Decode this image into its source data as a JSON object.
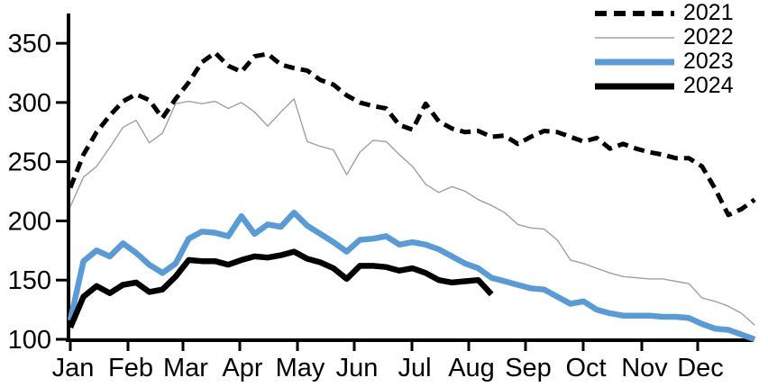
{
  "chart": {
    "title": "",
    "legend": [
      {
        "label": "2021",
        "style": "dashed",
        "color": "#000000"
      },
      {
        "label": "2022",
        "style": "thin",
        "color": "#A0A0A0"
      },
      {
        "label": "2023",
        "style": "thick",
        "color": "#5B9BD5"
      },
      {
        "label": "2024",
        "style": "thick",
        "color": "#000000"
      }
    ]
  },
  "chart_data": {
    "type": "line",
    "title": "",
    "xlabel": "",
    "ylabel": "",
    "x_frequency": "weekly",
    "categories": [
      "Jan",
      "Feb",
      "Mar",
      "Apr",
      "May",
      "Jun",
      "Jul",
      "Aug",
      "Sep",
      "Oct",
      "Nov",
      "Dec"
    ],
    "y_ticks": [
      100,
      150,
      200,
      250,
      300,
      350
    ],
    "ylim": [
      100,
      375
    ],
    "grid": false,
    "legend_position": "top-right",
    "series": [
      {
        "name": "2021",
        "line": "dashed-black",
        "color": "#000000",
        "values": [
          228,
          256,
          275,
          289,
          301,
          307,
          302,
          287,
          303,
          317,
          334,
          342,
          331,
          326,
          339,
          341,
          332,
          329,
          327,
          319,
          315,
          306,
          300,
          297,
          295,
          281,
          277,
          299,
          284,
          278,
          275,
          276,
          271,
          272,
          265,
          271,
          276,
          275,
          271,
          267,
          270,
          261,
          265,
          261,
          258,
          256,
          253,
          253,
          246,
          227,
          205,
          210,
          218
        ]
      },
      {
        "name": "2022",
        "line": "thin-gray",
        "color": "#A0A0A0",
        "values": [
          212,
          237,
          246,
          262,
          279,
          285,
          266,
          274,
          299,
          301,
          299,
          301,
          295,
          300,
          292,
          280,
          292,
          303,
          267,
          263,
          260,
          239,
          258,
          268,
          267,
          256,
          246,
          231,
          224,
          229,
          225,
          218,
          213,
          207,
          197,
          194,
          193,
          184,
          167,
          164,
          160,
          156,
          153,
          152,
          151,
          151,
          149,
          147,
          135,
          132,
          128,
          122,
          112
        ]
      },
      {
        "name": "2023",
        "line": "thick-blue",
        "color": "#5B9BD5",
        "values": [
          116,
          166,
          175,
          170,
          181,
          173,
          163,
          156,
          164,
          185,
          191,
          190,
          187,
          204,
          189,
          197,
          195,
          207,
          196,
          189,
          182,
          174,
          184,
          185,
          187,
          180,
          182,
          180,
          176,
          170,
          164,
          160,
          152,
          149,
          146,
          143,
          142,
          136,
          130,
          132,
          125,
          122,
          120,
          120,
          120,
          119,
          119,
          118,
          113,
          109,
          108,
          104,
          100
        ]
      },
      {
        "name": "2024",
        "line": "thick-black",
        "color": "#000000",
        "values": [
          110,
          136,
          145,
          139,
          146,
          148,
          140,
          142,
          153,
          167,
          166,
          166,
          163,
          167,
          170,
          169,
          171,
          174,
          168,
          165,
          160,
          151,
          162,
          162,
          161,
          158,
          160,
          156,
          150,
          148,
          149,
          150,
          138
        ]
      }
    ]
  }
}
